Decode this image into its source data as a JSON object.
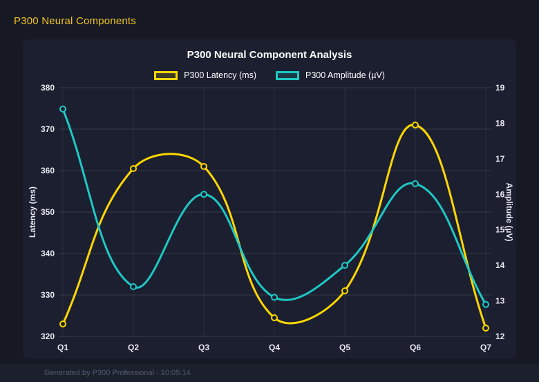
{
  "page": {
    "heading": "P300 Neural Components",
    "footer": "Generated by P300 Professional - 10:05:14"
  },
  "colors": {
    "accent_yellow": "#F2C41D",
    "latency_line": "#FFD700",
    "amplitude_line": "#1EC9C4",
    "page_background": "#161924",
    "card_background": "#1B1F30",
    "grid_line": "rgba(255,255,255,0.12)",
    "tick_text": "#E9EBF2",
    "title_text": "#FFFFFF",
    "footer_text": "#525A70"
  },
  "chart_data": {
    "type": "line",
    "title": "P300 Neural Component Analysis",
    "categories": [
      "Q1",
      "Q2",
      "Q3",
      "Q4",
      "Q5",
      "Q6",
      "Q7"
    ],
    "series": [
      {
        "name": "P300 Latency (ms)",
        "axis": "left",
        "color": "#FFD700",
        "values": [
          323,
          360.5,
          361,
          324.5,
          331,
          371,
          322
        ]
      },
      {
        "name": "P300 Amplitude (µV)",
        "axis": "right",
        "color": "#1EC9C4",
        "values": [
          18.4,
          13.4,
          16.0,
          13.1,
          14.0,
          16.3,
          12.9
        ]
      }
    ],
    "left_axis": {
      "label": "Latency (ms)",
      "min": 320,
      "max": 380,
      "step": 10
    },
    "right_axis": {
      "label": "Amplitude (µV)",
      "min": 12,
      "max": 19,
      "step": 1
    },
    "grid": true,
    "legend_position": "top",
    "curve_tension": 0.4
  }
}
